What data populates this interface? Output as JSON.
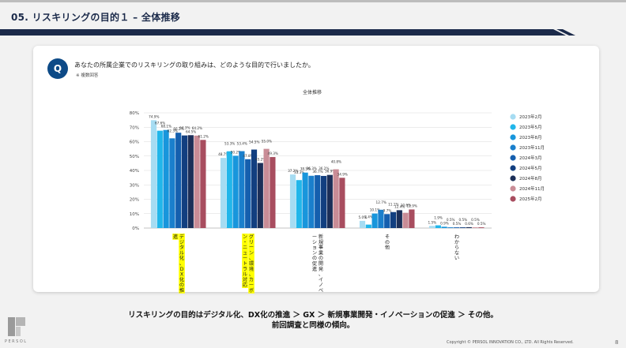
{
  "header": {
    "title": "05. リスキリングの目的１ – 全体推移"
  },
  "question": {
    "badge": "Q",
    "text": "あなたの所属企業でのリスキリングの取り組みは、どのような目的で行いましたか。",
    "note": "※ 複数回答"
  },
  "chart_data": {
    "type": "bar",
    "title": "全体推移",
    "ylim": [
      0,
      80
    ],
    "yticks": [
      "0%",
      "10%",
      "20%",
      "30%",
      "40%",
      "50%",
      "60%",
      "70%",
      "80%"
    ],
    "grid": true,
    "legend_position": "right",
    "categories": [
      "デジタル化、DX化の推進",
      "グリーン、環境、カーボン・ニュートラル対応",
      "新規事業の開発、イノベーションの促進",
      "その他",
      "わからない"
    ],
    "highlighted_categories": [
      0,
      1
    ],
    "series": [
      {
        "name": "2023年2月",
        "color": "#a6dcf2",
        "values": [
          74.9,
          48.7,
          37.2,
          5.0,
          1.5
        ]
      },
      {
        "name": "2023年5月",
        "color": "#21b6ea",
        "values": [
          67.6,
          53.3,
          33.3,
          2.4,
          1.9
        ]
      },
      {
        "name": "2023年8月",
        "color": "#1896dc",
        "values": [
          68.1,
          50.2,
          38.5,
          10.1,
          0.9
        ]
      },
      {
        "name": "2023年11月",
        "color": "#1a7fcc",
        "values": [
          62.3,
          53.4,
          36.3,
          12.7,
          0.5
        ]
      },
      {
        "name": "2024年3月",
        "color": "#155fae",
        "values": [
          66.2,
          47.8,
          36.7,
          9.7,
          0.5
        ]
      },
      {
        "name": "2024年5月",
        "color": "#123f80",
        "values": [
          64.3,
          54.5,
          36.2,
          11.1,
          0.5
        ]
      },
      {
        "name": "2024年8月",
        "color": "#1c2f58",
        "values": [
          64.5,
          45.2,
          36.9,
          12.4,
          0.6
        ]
      },
      {
        "name": "2024年11月",
        "color": "#c98c96",
        "values": [
          64.2,
          55.0,
          40.8,
          10.6,
          0.5
        ]
      },
      {
        "name": "2025年2月",
        "color": "#a84d5f",
        "values": [
          61.2,
          49.3,
          34.9,
          12.9,
          0.5
        ]
      }
    ],
    "data_labels": [
      [
        "74.9%",
        "67.6%",
        "68.1%",
        "62.3%",
        "66.2%",
        "64.3%",
        "64.5%",
        "64.2%",
        "61.2%"
      ],
      [
        "48.7%",
        "53.3%",
        "50.2%",
        "53.4%",
        "47.8%",
        "54.5%",
        "45.2%",
        "55.0%",
        "49.3%"
      ],
      [
        "37.2%",
        "33.3%",
        "38.5%",
        "36.3%",
        "36.7%",
        "36.2%",
        "36.9%",
        "40.8%",
        "34.9%"
      ],
      [
        "5.0%",
        "2.4%",
        "10.1%",
        "12.7%",
        "9.7%",
        "11.1%",
        "12.4%",
        "10.6%",
        "12.9%"
      ],
      [
        "1.5%",
        "1.9%",
        "0.9%",
        "0.5%",
        "0.5%",
        "0.5%",
        "0.6%",
        "0.5%",
        "0.5%"
      ]
    ]
  },
  "conclusion": {
    "line1": "リスキリングの目的はデジタル化、DX化の推進 ＞ GX ＞ 新規事業開発・イノベーションの促進 ＞ その他。",
    "line2": "前回調査と同様の傾向。"
  },
  "footer": {
    "brand": "PERSOL",
    "copyright": "Copyright © PERSOL INNOVATION CO., LTD. All Rights Reserved.",
    "page": "8"
  },
  "colors": {
    "accent": "#1b2a4a",
    "badge": "#0d4a87",
    "highlight": "#ffff00"
  }
}
